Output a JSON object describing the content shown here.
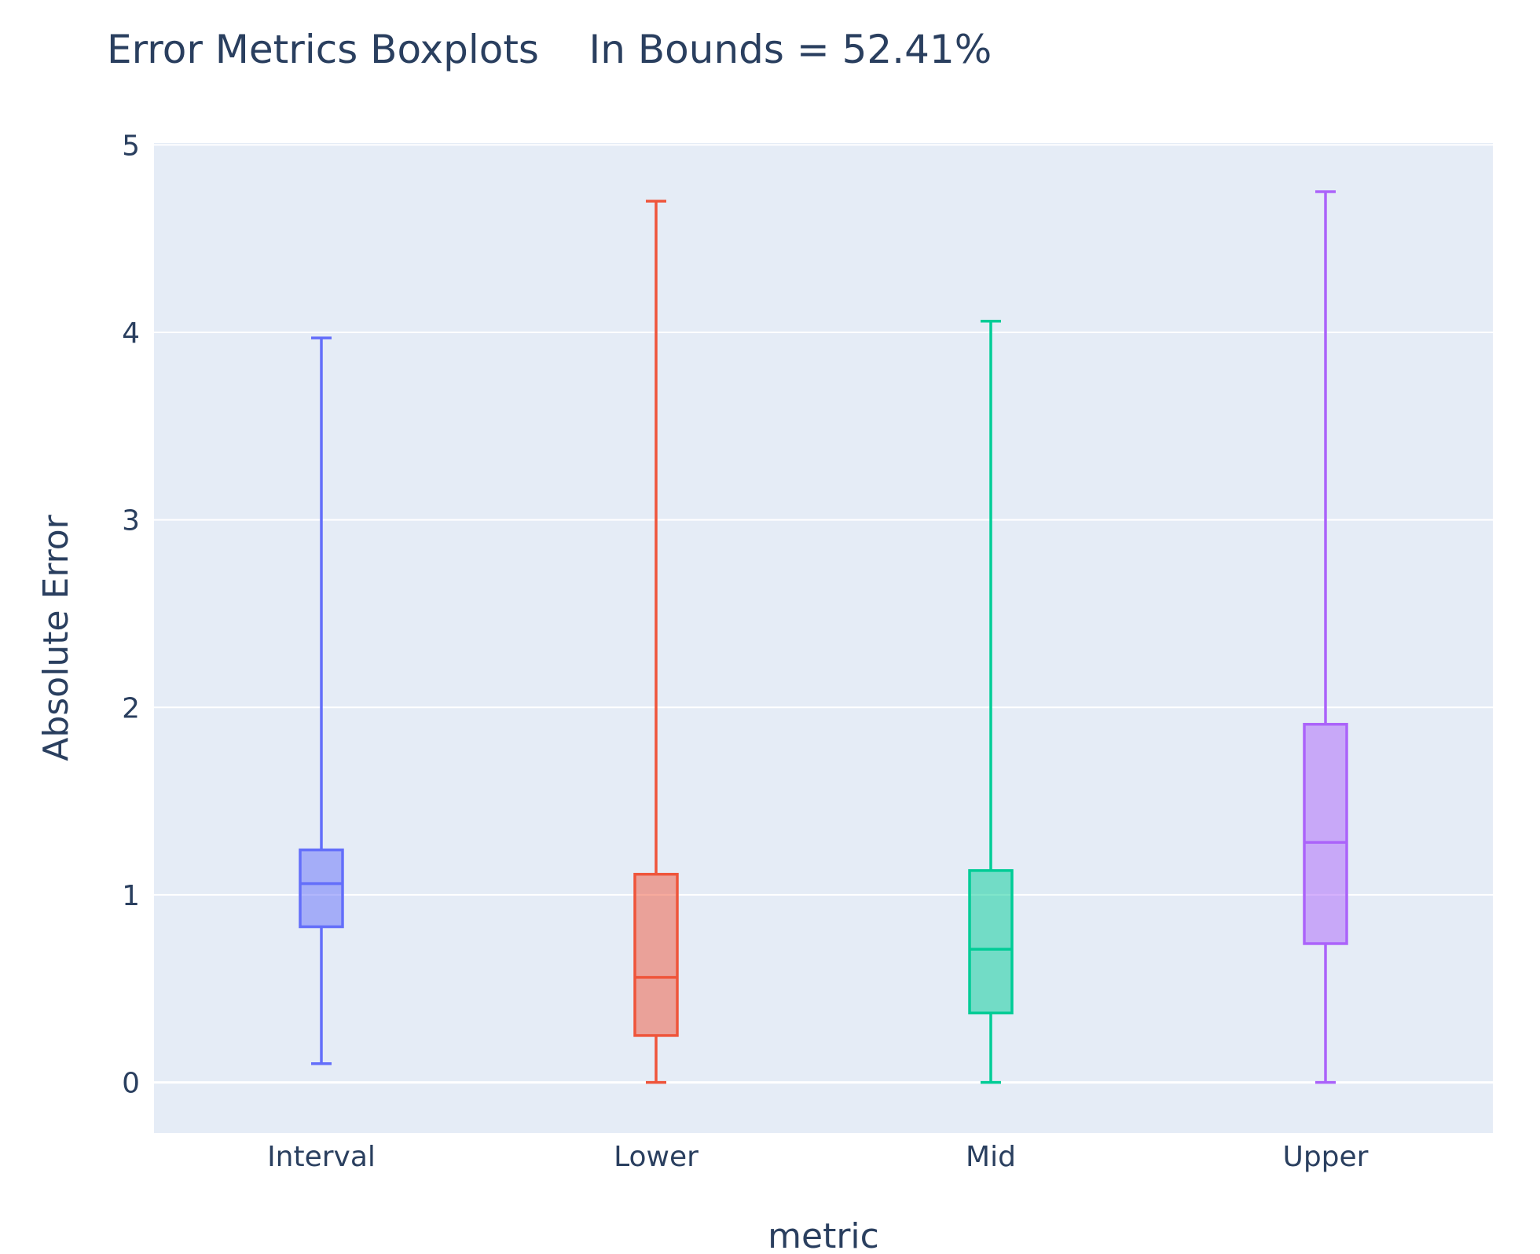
{
  "chart_data": {
    "type": "box",
    "title": "Error Metrics Boxplots    In Bounds = 52.41%",
    "xlabel": "metric",
    "ylabel": "Absolute Error",
    "ylim": [
      -0.27,
      5.01
    ],
    "yticks": [
      "0",
      "1",
      "2",
      "3",
      "4",
      "5"
    ],
    "grid": true,
    "categories": [
      "Interval",
      "Lower",
      "Mid",
      "Upper"
    ],
    "series": [
      {
        "category": "Interval",
        "color": "#636efa",
        "min": 0.1,
        "q1": 0.83,
        "median": 1.06,
        "q3": 1.24,
        "max": 3.97
      },
      {
        "category": "Lower",
        "color": "#ef553b",
        "min": 0.0,
        "q1": 0.25,
        "median": 0.56,
        "q3": 1.11,
        "max": 4.7
      },
      {
        "category": "Mid",
        "color": "#00cc96",
        "min": 0.0,
        "q1": 0.37,
        "median": 0.71,
        "q3": 1.13,
        "max": 4.06
      },
      {
        "category": "Upper",
        "color": "#ab63fa",
        "min": 0.0,
        "q1": 0.74,
        "median": 1.28,
        "q3": 1.91,
        "max": 4.75
      }
    ]
  }
}
